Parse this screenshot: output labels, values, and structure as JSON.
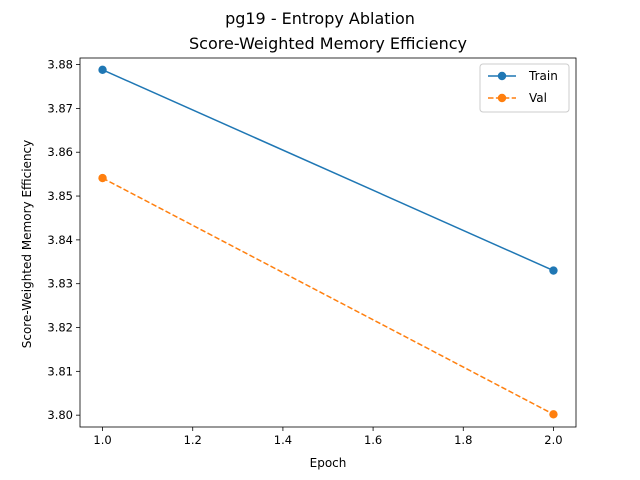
{
  "figure": {
    "suptitle": "pg19 - Entropy Ablation"
  },
  "chart_data": {
    "type": "line",
    "title": "Score-Weighted Memory Efficiency",
    "xlabel": "Epoch",
    "ylabel": "Score-Weighted Memory Efficiency",
    "x": [
      1.0,
      2.0
    ],
    "xlim": [
      0.95,
      2.05
    ],
    "ylim": [
      3.7973,
      3.8815
    ],
    "xticks": [
      "1.0",
      "1.2",
      "1.4",
      "1.6",
      "1.8",
      "2.0"
    ],
    "yticks": [
      "3.80",
      "3.81",
      "3.82",
      "3.83",
      "3.84",
      "3.85",
      "3.86",
      "3.87",
      "3.88"
    ],
    "grid": false,
    "legend_position": "top-right",
    "series": [
      {
        "name": "Train",
        "values": [
          3.8788,
          3.833
        ],
        "color": "#1f77b4",
        "linestyle": "solid",
        "marker": "circle"
      },
      {
        "name": "Val",
        "values": [
          3.8541,
          3.8002
        ],
        "color": "#ff7f0e",
        "linestyle": "dashed",
        "marker": "circle"
      }
    ]
  }
}
